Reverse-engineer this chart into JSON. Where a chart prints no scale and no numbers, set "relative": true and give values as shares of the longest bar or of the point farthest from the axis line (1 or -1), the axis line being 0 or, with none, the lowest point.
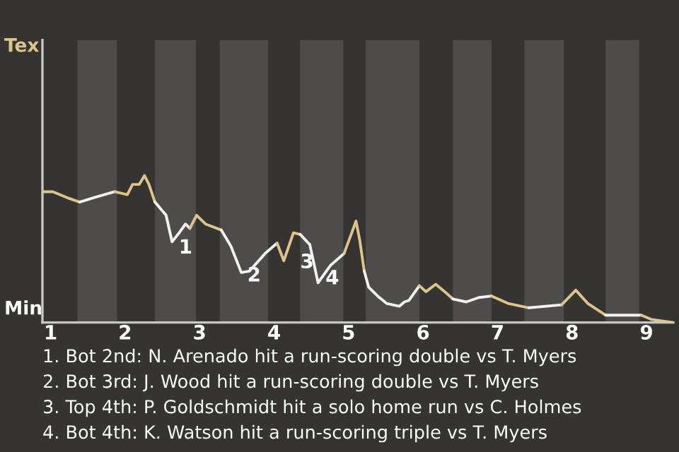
{
  "chart_data": {
    "type": "line",
    "relative": true,
    "xlim": [
      0.89,
      9.36
    ],
    "xticks": [
      1,
      2,
      3,
      4,
      5,
      6,
      7,
      8,
      9
    ],
    "bands": [
      {
        "axis": "x",
        "from": 1.36,
        "to": 1.89,
        "color": "#4d4c4a"
      },
      {
        "axis": "x",
        "from": 2.4,
        "to": 2.95,
        "color": "#4d4c4a"
      },
      {
        "axis": "x",
        "from": 3.27,
        "to": 3.92,
        "color": "#4d4c4a"
      },
      {
        "axis": "x",
        "from": 4.35,
        "to": 4.93,
        "color": "#4d4c4a"
      },
      {
        "axis": "x",
        "from": 5.23,
        "to": 5.95,
        "color": "#4d4c4a"
      },
      {
        "axis": "x",
        "from": 6.4,
        "to": 6.92,
        "color": "#4d4c4a"
      },
      {
        "axis": "x",
        "from": 7.36,
        "to": 7.89,
        "color": "#4d4c4a"
      },
      {
        "axis": "x",
        "from": 8.45,
        "to": 8.9,
        "color": "#4d4c4a"
      }
    ],
    "series": [
      {
        "color": "#dcc48c",
        "x": [
          0.89,
          1.03,
          1.22,
          1.39
        ],
        "values": [
          0.89,
          0.89,
          0.85,
          0.82
        ]
      },
      {
        "color": "#f2f2f2",
        "x": [
          1.39,
          1.58,
          1.86
        ],
        "values": [
          0.82,
          0.85,
          0.89
        ]
      },
      {
        "color": "#dcc48c",
        "x": [
          1.86,
          2.03,
          2.1,
          2.19,
          2.26,
          2.32,
          2.4
        ],
        "values": [
          0.89,
          0.87,
          0.94,
          0.94,
          1,
          0.94,
          0.82
        ]
      },
      {
        "color": "#f2f2f2",
        "x": [
          2.4,
          2.55,
          2.63,
          2.71,
          2.81,
          2.87
        ],
        "values": [
          0.82,
          0.73,
          0.55,
          0.6,
          0.67,
          0.64
        ]
      },
      {
        "color": "#dcc48c",
        "x": [
          2.87,
          2.96,
          3.08,
          3.29
        ],
        "values": [
          0.64,
          0.73,
          0.67,
          0.63
        ]
      },
      {
        "color": "#f2f2f2",
        "x": [
          3.29,
          3.42,
          3.56,
          3.67,
          3.88,
          4.04
        ],
        "values": [
          0.63,
          0.52,
          0.34,
          0.35,
          0.47,
          0.54
        ]
      },
      {
        "color": "#dcc48c",
        "x": [
          4.04,
          4.13,
          4.26,
          4.35
        ],
        "values": [
          0.54,
          0.42,
          0.61,
          0.6
        ]
      },
      {
        "color": "#f2f2f2",
        "x": [
          4.35,
          4.48,
          4.59,
          4.76,
          4.94
        ],
        "values": [
          0.6,
          0.53,
          0.27,
          0.39,
          0.47
        ]
      },
      {
        "color": "#dcc48c",
        "x": [
          4.94,
          5.1,
          5.15,
          5.21
        ],
        "values": [
          0.47,
          0.69,
          0.56,
          0.35
        ]
      },
      {
        "color": "#f2f2f2",
        "x": [
          5.21,
          5.27,
          5.39,
          5.51,
          5.68,
          5.75,
          5.81,
          5.95
        ],
        "values": [
          0.35,
          0.24,
          0.18,
          0.13,
          0.11,
          0.14,
          0.15,
          0.25
        ]
      },
      {
        "color": "#dcc48c",
        "x": [
          5.95,
          6.04,
          6.17,
          6.29,
          6.4
        ],
        "values": [
          0.25,
          0.21,
          0.26,
          0.21,
          0.16
        ]
      },
      {
        "color": "#f2f2f2",
        "x": [
          6.4,
          6.58,
          6.75,
          6.92
        ],
        "values": [
          0.16,
          0.14,
          0.17,
          0.18
        ]
      },
      {
        "color": "#dcc48c",
        "x": [
          6.92,
          7.14,
          7.42
        ],
        "values": [
          0.18,
          0.13,
          0.1
        ]
      },
      {
        "color": "#f2f2f2",
        "x": [
          7.42,
          7.86
        ],
        "values": [
          0.1,
          0.12
        ]
      },
      {
        "color": "#dcc48c",
        "x": [
          7.86,
          8.05,
          8.21,
          8.45
        ],
        "values": [
          0.12,
          0.22,
          0.13,
          0.05
        ]
      },
      {
        "color": "#f2f2f2",
        "x": [
          8.45,
          8.69,
          8.93
        ],
        "values": [
          0.05,
          0.05,
          0.05
        ]
      },
      {
        "color": "#dcc48c",
        "x": [
          8.93,
          9.07,
          9.36
        ],
        "values": [
          0.05,
          0.02,
          0
        ]
      }
    ],
    "annotations": [
      "Tex",
      "Min",
      {
        "text": "1",
        "x": 2.68,
        "y": 0.56
      },
      {
        "text": "2",
        "x": 3.6,
        "y": 0.37
      },
      {
        "text": "3",
        "x": 4.31,
        "y": 0.46
      },
      {
        "text": "4",
        "x": 4.65,
        "y": 0.35
      },
      "1. Bot 2nd: N. Arenado hit a run-scoring double vs T. Myers",
      "2. Bot 3rd: J. Wood hit a run-scoring double vs T. Myers",
      "3. Top 4th: P. Goldschmidt hit a solo home run vs C. Holmes",
      "4. Bot 4th: K. Watson hit a run-scoring triple vs T. Myers"
    ]
  }
}
